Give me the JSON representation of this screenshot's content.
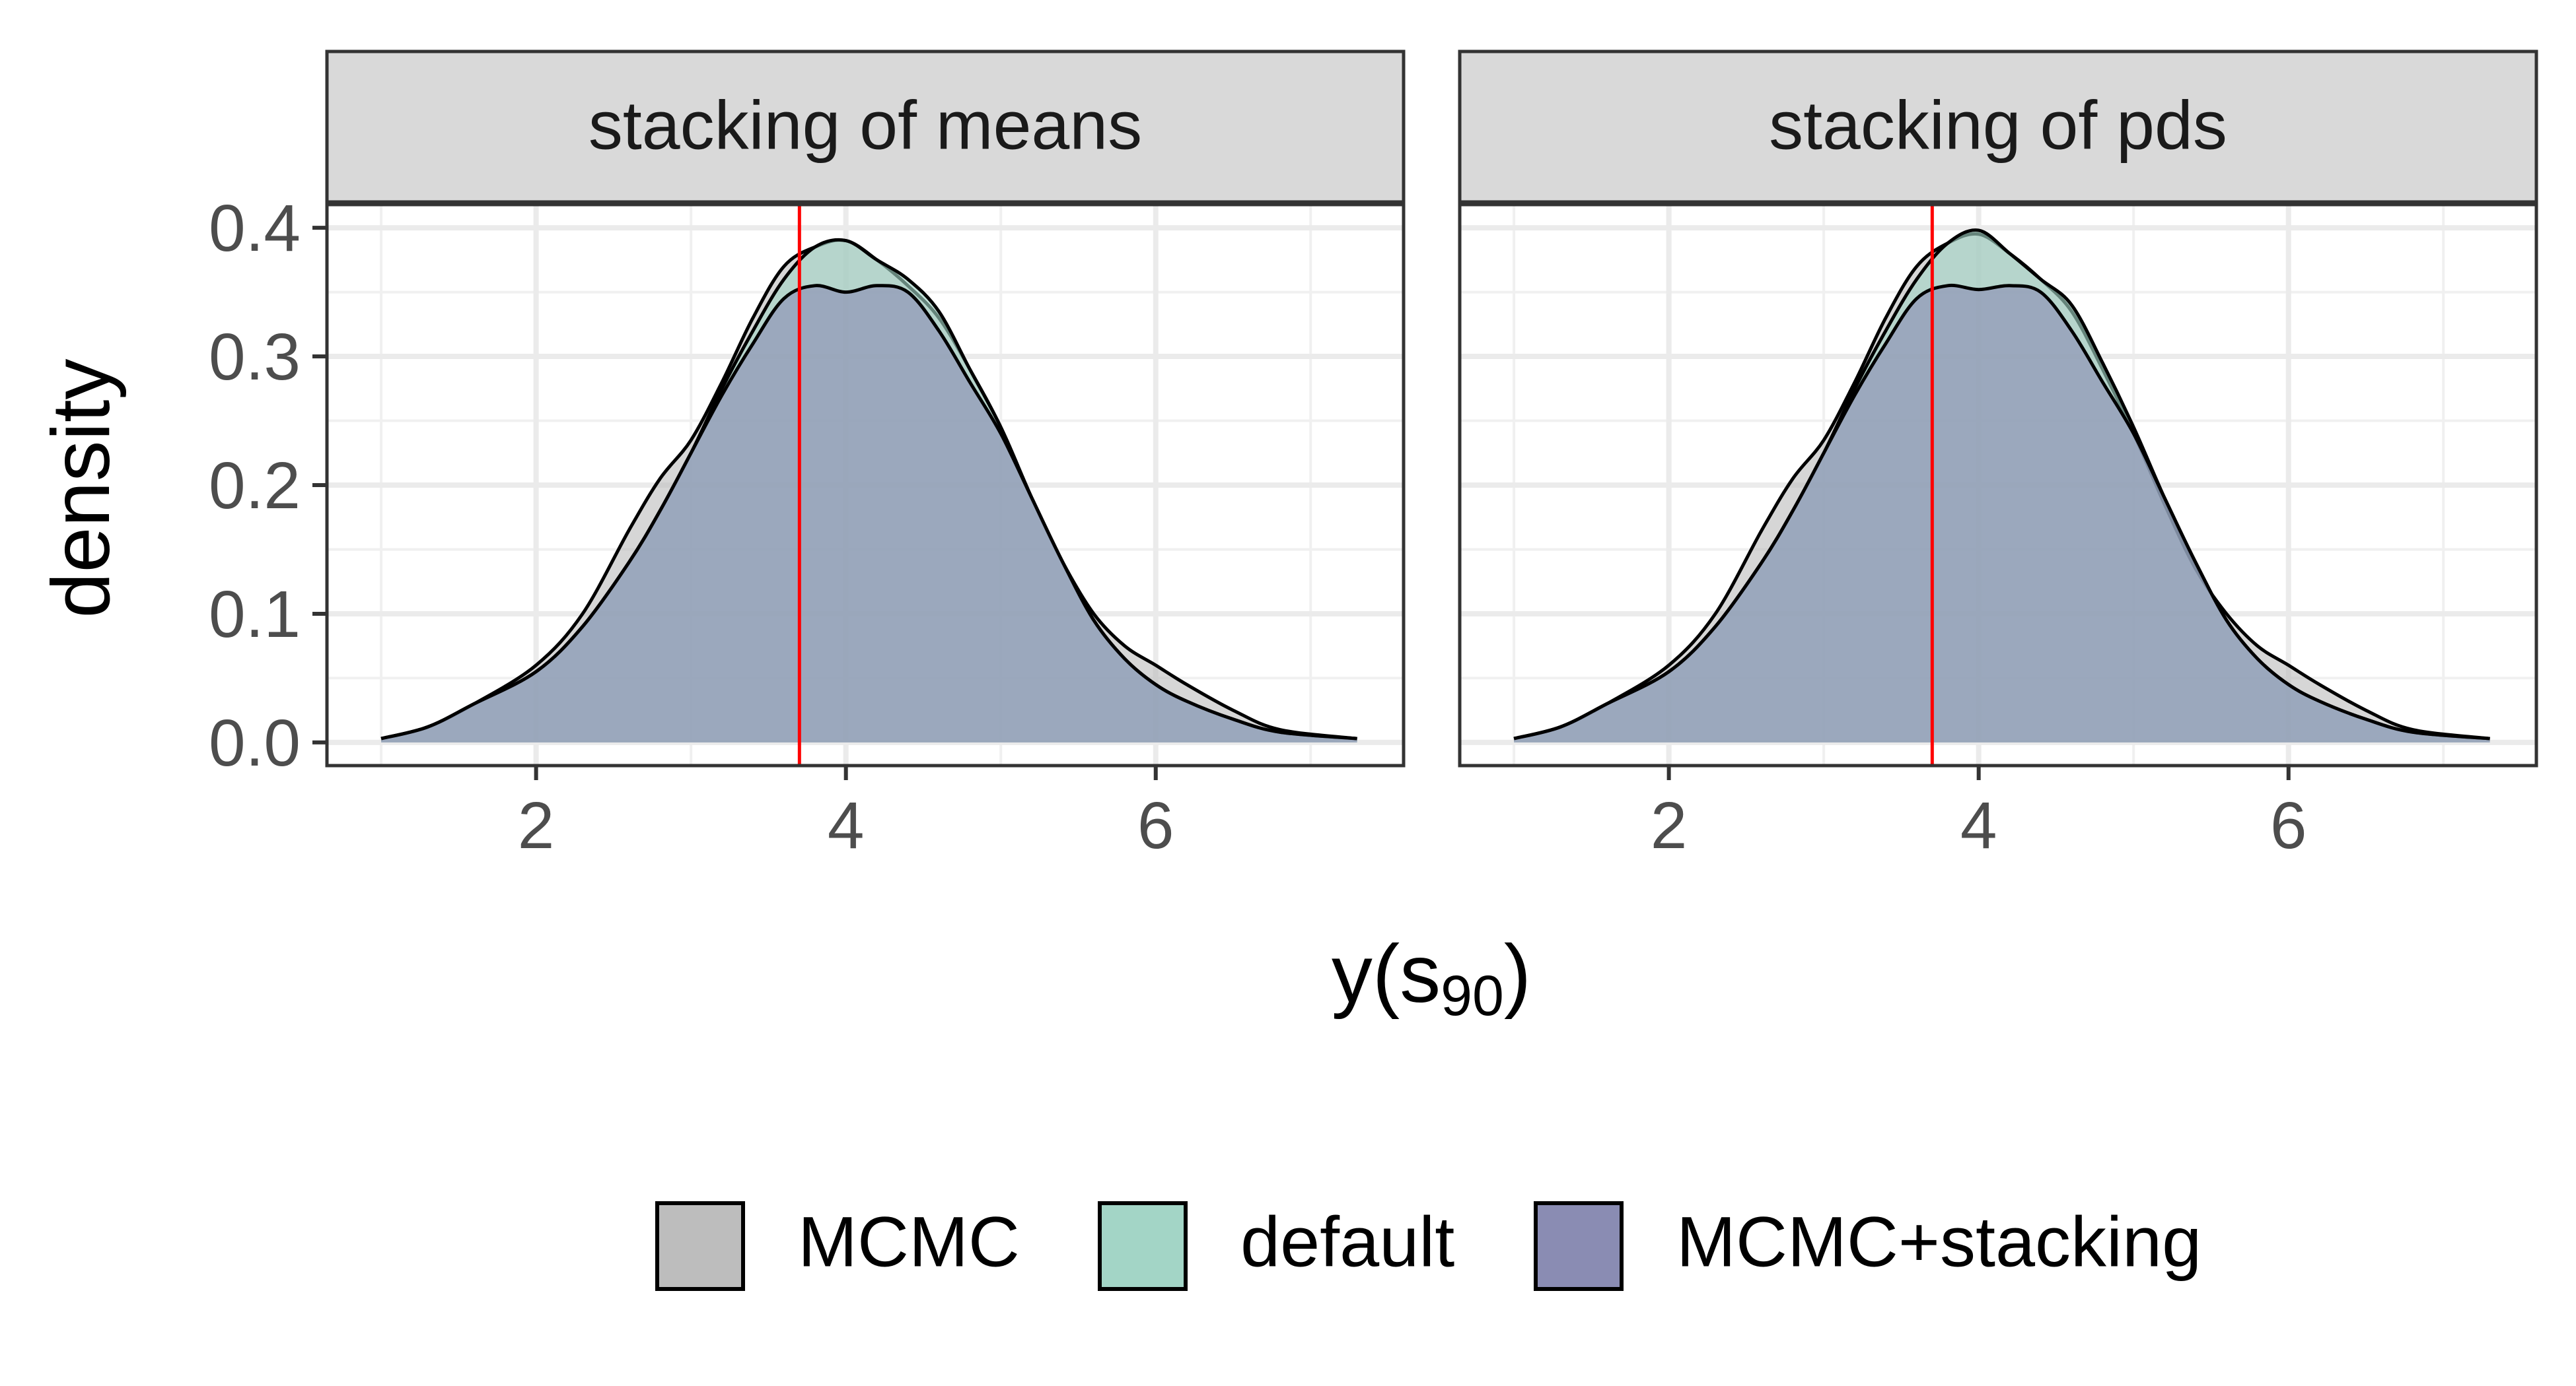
{
  "colors": {
    "MCMC": "#bdbdbd",
    "default": "#a3d5c6",
    "MCMC+stacking": "#8a8cb3",
    "reference_line": "#ff0000",
    "strip_fill": "#d9d9d9"
  },
  "legend": {
    "items": [
      {
        "key": "MCMC",
        "label": "MCMC"
      },
      {
        "key": "default",
        "label": "default"
      },
      {
        "key": "MCMC+stacking",
        "label": "MCMC+stacking"
      }
    ]
  },
  "chart_data": {
    "type": "area",
    "subtype": "density",
    "xlabel_base": "y(s",
    "xlabel_sub": "90",
    "xlabel_close": ")",
    "ylabel": "density",
    "xlim": [
      0.65,
      7.6
    ],
    "ylim": [
      -0.018,
      0.418
    ],
    "xticks": [
      2,
      4,
      6
    ],
    "yticks": [
      0.0,
      0.1,
      0.2,
      0.3,
      0.4
    ],
    "ytick_labels": [
      "0.0",
      "0.1",
      "0.2",
      "0.3",
      "0.4"
    ],
    "reference_x": 3.7,
    "grid": true,
    "legend_position": "bottom",
    "panels": [
      {
        "title": "stacking of means",
        "series": [
          {
            "name": "MCMC",
            "x": [
              1.0,
              1.3,
              1.6,
              2.0,
              2.3,
              2.6,
              2.8,
              3.0,
              3.2,
              3.4,
              3.6,
              3.8,
              4.0,
              4.2,
              4.4,
              4.6,
              4.8,
              5.0,
              5.2,
              5.4,
              5.6,
              5.8,
              6.0,
              6.2,
              6.5,
              6.8,
              7.3
            ],
            "y": [
              0.003,
              0.012,
              0.03,
              0.06,
              0.1,
              0.165,
              0.205,
              0.235,
              0.28,
              0.33,
              0.37,
              0.385,
              0.39,
              0.375,
              0.355,
              0.33,
              0.29,
              0.245,
              0.19,
              0.14,
              0.1,
              0.075,
              0.06,
              0.045,
              0.025,
              0.01,
              0.003
            ]
          },
          {
            "name": "default",
            "x": [
              1.0,
              1.3,
              1.6,
              2.0,
              2.3,
              2.6,
              2.8,
              3.0,
              3.2,
              3.4,
              3.6,
              3.8,
              4.0,
              4.2,
              4.4,
              4.6,
              4.8,
              5.0,
              5.2,
              5.4,
              5.6,
              5.8,
              6.0,
              6.2,
              6.5,
              6.8,
              7.3
            ],
            "y": [
              0.003,
              0.012,
              0.03,
              0.055,
              0.09,
              0.14,
              0.18,
              0.225,
              0.275,
              0.32,
              0.36,
              0.385,
              0.39,
              0.375,
              0.36,
              0.335,
              0.29,
              0.245,
              0.19,
              0.14,
              0.095,
              0.065,
              0.045,
              0.032,
              0.018,
              0.008,
              0.003
            ]
          },
          {
            "name": "MCMC+stacking",
            "x": [
              1.0,
              1.3,
              1.6,
              2.0,
              2.3,
              2.6,
              2.8,
              3.0,
              3.2,
              3.4,
              3.6,
              3.8,
              4.0,
              4.2,
              4.4,
              4.6,
              4.8,
              5.0,
              5.2,
              5.4,
              5.6,
              5.8,
              6.0,
              6.2,
              6.5,
              6.8,
              7.3
            ],
            "y": [
              0.003,
              0.012,
              0.03,
              0.055,
              0.09,
              0.14,
              0.18,
              0.225,
              0.27,
              0.31,
              0.345,
              0.355,
              0.35,
              0.355,
              0.35,
              0.32,
              0.28,
              0.24,
              0.19,
              0.14,
              0.095,
              0.065,
              0.045,
              0.032,
              0.018,
              0.008,
              0.003
            ]
          }
        ]
      },
      {
        "title": "stacking of pds",
        "series": [
          {
            "name": "MCMC",
            "x": [
              1.0,
              1.3,
              1.6,
              2.0,
              2.3,
              2.6,
              2.8,
              3.0,
              3.2,
              3.4,
              3.6,
              3.8,
              4.0,
              4.2,
              4.4,
              4.6,
              4.8,
              5.0,
              5.2,
              5.4,
              5.6,
              5.8,
              6.0,
              6.2,
              6.5,
              6.8,
              7.3
            ],
            "y": [
              0.003,
              0.012,
              0.03,
              0.06,
              0.1,
              0.165,
              0.205,
              0.235,
              0.28,
              0.33,
              0.37,
              0.388,
              0.395,
              0.38,
              0.36,
              0.335,
              0.29,
              0.24,
              0.185,
              0.135,
              0.1,
              0.075,
              0.06,
              0.045,
              0.025,
              0.01,
              0.003
            ]
          },
          {
            "name": "default",
            "x": [
              1.0,
              1.3,
              1.6,
              2.0,
              2.3,
              2.6,
              2.8,
              3.0,
              3.2,
              3.4,
              3.6,
              3.8,
              4.0,
              4.2,
              4.4,
              4.6,
              4.8,
              5.0,
              5.2,
              5.4,
              5.6,
              5.8,
              6.0,
              6.2,
              6.5,
              6.8,
              7.3
            ],
            "y": [
              0.003,
              0.012,
              0.03,
              0.055,
              0.09,
              0.14,
              0.18,
              0.225,
              0.275,
              0.32,
              0.36,
              0.388,
              0.398,
              0.38,
              0.36,
              0.34,
              0.295,
              0.245,
              0.19,
              0.14,
              0.095,
              0.065,
              0.045,
              0.032,
              0.018,
              0.008,
              0.003
            ]
          },
          {
            "name": "MCMC+stacking",
            "x": [
              1.0,
              1.3,
              1.6,
              2.0,
              2.3,
              2.6,
              2.8,
              3.0,
              3.2,
              3.4,
              3.6,
              3.8,
              4.0,
              4.2,
              4.4,
              4.6,
              4.8,
              5.0,
              5.2,
              5.4,
              5.6,
              5.8,
              6.0,
              6.2,
              6.5,
              6.8,
              7.3
            ],
            "y": [
              0.003,
              0.012,
              0.03,
              0.055,
              0.09,
              0.14,
              0.18,
              0.225,
              0.27,
              0.31,
              0.345,
              0.355,
              0.352,
              0.355,
              0.35,
              0.32,
              0.28,
              0.24,
              0.19,
              0.14,
              0.095,
              0.065,
              0.045,
              0.032,
              0.018,
              0.008,
              0.003
            ]
          }
        ]
      }
    ]
  }
}
